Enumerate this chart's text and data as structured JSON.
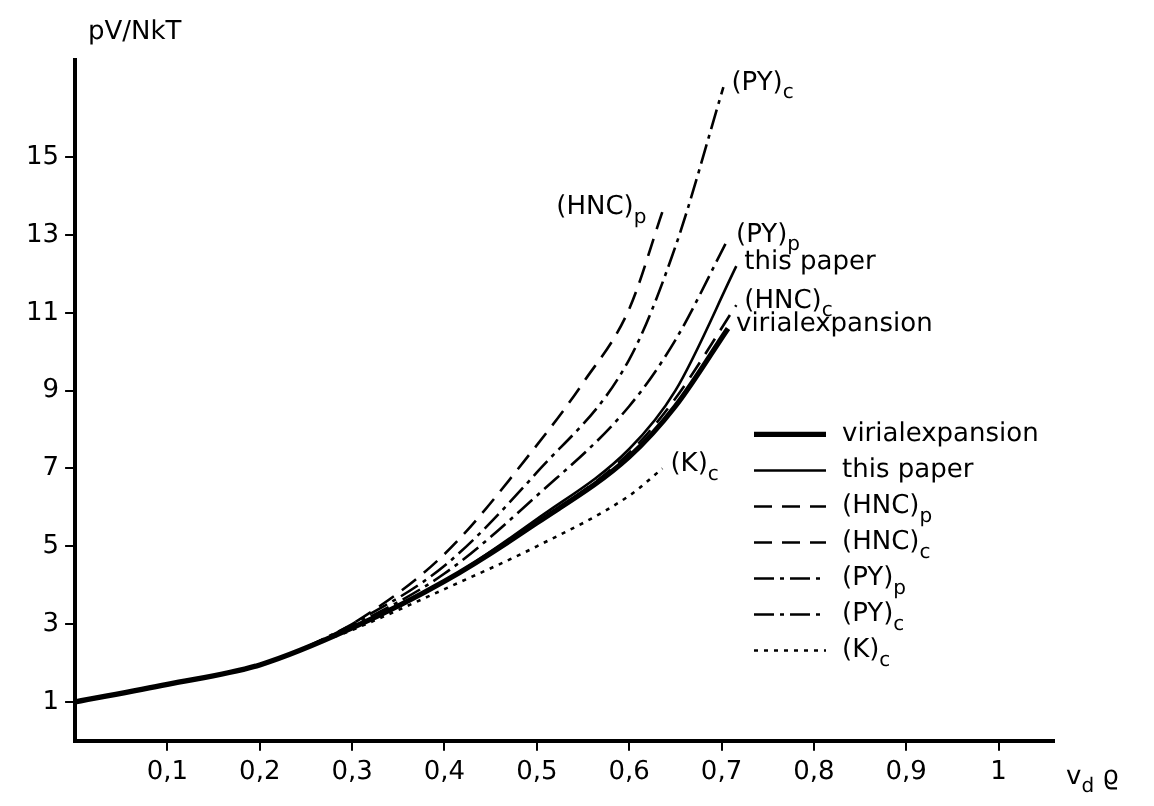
{
  "chart_data": {
    "type": "line",
    "xlabel": "v$_{d}$ ϱ",
    "ylabel": "pV/NkT",
    "xlim": [
      0,
      1.06
    ],
    "ylim": [
      0,
      17.5
    ],
    "xticks": [
      {
        "value": 0.1,
        "label": "0,1"
      },
      {
        "value": 0.2,
        "label": "0,2"
      },
      {
        "value": 0.3,
        "label": "0,3"
      },
      {
        "value": 0.4,
        "label": "0,4"
      },
      {
        "value": 0.5,
        "label": "0,5"
      },
      {
        "value": 0.6,
        "label": "0,6"
      },
      {
        "value": 0.7,
        "label": "0,7"
      },
      {
        "value": 0.8,
        "label": "0,8"
      },
      {
        "value": 0.9,
        "label": "0,9"
      },
      {
        "value": 1,
        "label": "1"
      }
    ],
    "yticks": [
      1,
      3,
      5,
      7,
      9,
      11,
      13,
      15
    ],
    "grid": false,
    "legend": "right",
    "marker": "none",
    "series": [
      {
        "name": "virialexpansion",
        "color": "#000000",
        "line_style": "solid",
        "x": [
          0,
          0.1,
          0.2,
          0.3,
          0.4,
          0.5,
          0.6,
          0.65,
          0.707
        ],
        "values": [
          1,
          1.45,
          1.95,
          2.9,
          4.1,
          5.6,
          7.3,
          8.6,
          10.6
        ]
      },
      {
        "name": "this paper",
        "color": "#000000",
        "line_style": "solid",
        "x": [
          0.25,
          0.3,
          0.4,
          0.5,
          0.6,
          0.65,
          0.716
        ],
        "values": [
          2.4,
          2.9,
          4.1,
          5.7,
          7.5,
          9.0,
          12.2
        ]
      },
      {
        "name": "(HNC)$_{p}$",
        "color": "#000000",
        "line_style": "dashed",
        "x": [
          0.25,
          0.3,
          0.4,
          0.5,
          0.55,
          0.6,
          0.636
        ],
        "values": [
          2.4,
          3.0,
          4.8,
          7.6,
          9.2,
          11.1,
          13.6
        ]
      },
      {
        "name": "(HNC)$_{c}$",
        "color": "#000000",
        "line_style": "dashed",
        "x": [
          0.25,
          0.3,
          0.4,
          0.5,
          0.6,
          0.65,
          0.716
        ],
        "values": [
          2.4,
          2.9,
          4.1,
          5.6,
          7.4,
          8.8,
          11.2
        ]
      },
      {
        "name": "(PY)$_{p}$",
        "color": "#000000",
        "line_style": "dashdot",
        "x": [
          0.25,
          0.3,
          0.4,
          0.5,
          0.6,
          0.65,
          0.707
        ],
        "values": [
          2.4,
          2.95,
          4.3,
          6.3,
          8.6,
          10.3,
          12.9
        ]
      },
      {
        "name": "(PY)$_{c}$",
        "color": "#000000",
        "line_style": "dashdot",
        "x": [
          0.25,
          0.3,
          0.4,
          0.5,
          0.6,
          0.65,
          0.702
        ],
        "values": [
          2.4,
          3.0,
          4.5,
          6.9,
          9.8,
          12.7,
          16.8
        ]
      },
      {
        "name": "(K)$_{c}$",
        "color": "#000000",
        "line_style": "dotted",
        "x": [
          0.25,
          0.3,
          0.4,
          0.5,
          0.6,
          0.636
        ],
        "values": [
          2.4,
          2.85,
          3.9,
          5.0,
          6.3,
          7.0
        ]
      }
    ],
    "annotations": [
      {
        "text": "(PY)$_{c}$",
        "x": 0.702,
        "y": 16.8
      },
      {
        "text": "(HNC)$_{p}$",
        "x": 0.636,
        "y": 13.6
      },
      {
        "text": "(PY)$_{p}$",
        "x": 0.707,
        "y": 12.9
      },
      {
        "text": "this paper",
        "x": 0.716,
        "y": 12.2
      },
      {
        "text": "(HNC)$_{c}$",
        "x": 0.716,
        "y": 11.2
      },
      {
        "text": "virialexpansion",
        "x": 0.707,
        "y": 10.6
      },
      {
        "text": "(K)$_{c}$",
        "x": 0.636,
        "y": 7.0
      }
    ]
  }
}
